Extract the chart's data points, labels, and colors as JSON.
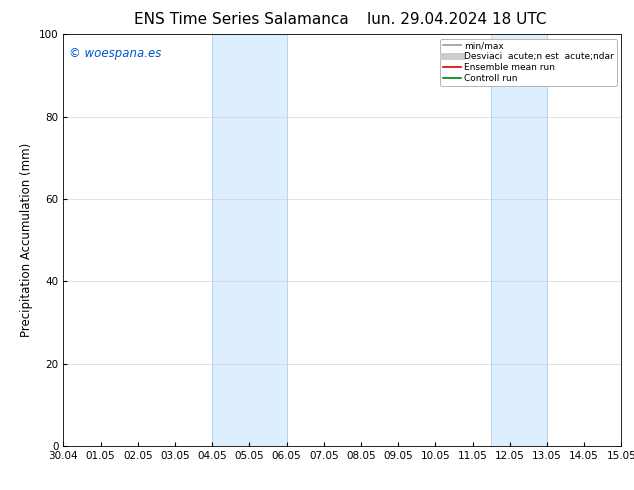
{
  "title_left": "ENS Time Series Salamanca",
  "title_right": "lun. 29.04.2024 18 UTC",
  "ylabel": "Precipitation Accumulation (mm)",
  "ylim": [
    0,
    100
  ],
  "yticks": [
    0,
    20,
    40,
    60,
    80,
    100
  ],
  "x_labels": [
    "30.04",
    "01.05",
    "02.05",
    "03.05",
    "04.05",
    "05.05",
    "06.05",
    "07.05",
    "08.05",
    "09.05",
    "10.05",
    "11.05",
    "12.05",
    "13.05",
    "14.05",
    "15.05"
  ],
  "x_values": [
    0,
    1,
    2,
    3,
    4,
    5,
    6,
    7,
    8,
    9,
    10,
    11,
    12,
    13,
    14,
    15
  ],
  "shaded_regions": [
    {
      "xmin": 4.0,
      "xmax": 6.0
    },
    {
      "xmin": 11.5,
      "xmax": 13.0
    }
  ],
  "shade_color": "#ddeeff",
  "shade_edge_color": "#b8d4e8",
  "watermark_text": "© woespana.es",
  "watermark_color": "#0055cc",
  "legend_entries": [
    {
      "label": "min/max",
      "color": "#999999",
      "lw": 1.2,
      "linestyle": "-"
    },
    {
      "label": "Desviaci  acute;n est  acute;ndar",
      "color": "#cccccc",
      "lw": 5,
      "linestyle": "-"
    },
    {
      "label": "Ensemble mean run",
      "color": "#dd0000",
      "lw": 1.2,
      "linestyle": "-"
    },
    {
      "label": "Controll run",
      "color": "#008800",
      "lw": 1.2,
      "linestyle": "-"
    }
  ],
  "bg_color": "#ffffff",
  "tick_fontsize": 7.5,
  "title_fontsize": 11,
  "ylabel_fontsize": 8.5
}
